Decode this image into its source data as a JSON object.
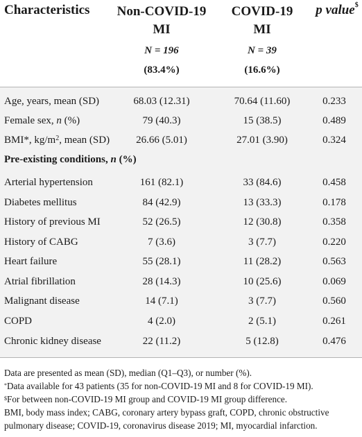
{
  "table": {
    "headers": {
      "characteristics": "Characteristics",
      "col1_line1": "Non-COVID-19",
      "col1_line2": "MI",
      "col1_n": "N = 196",
      "col1_pct": "(83.4%)",
      "col2_line1": "COVID-19",
      "col2_line2": "MI",
      "col2_n": "N = 39",
      "col2_pct": "(16.6%)",
      "pvalue": "p value",
      "pvalue_sup": "$"
    },
    "rows": [
      {
        "label": "Age, years, mean (SD)",
        "col1": "68.03 (12.31)",
        "col2": "70.64 (11.60)",
        "p": "0.233"
      },
      {
        "label": "Female sex, n (%)",
        "col1": "79 (40.3)",
        "col2": "15 (38.5)",
        "p": "0.489"
      },
      {
        "label_pre": "BMI*, kg/m",
        "label_sup": "2",
        "label_post": ", mean (SD)",
        "col1": "26.66 (5.01)",
        "col2": "27.01 (3.90)",
        "p": "0.324"
      },
      {
        "section": "Pre-existing conditions, n (%)"
      },
      {
        "label": "Arterial hypertension",
        "col1": "161 (82.1)",
        "col2": "33 (84.6)",
        "p": "0.458"
      },
      {
        "label": "Diabetes mellitus",
        "col1": "84 (42.9)",
        "col2": "13 (33.3)",
        "p": "0.178"
      },
      {
        "label": "History of previous MI",
        "col1": "52 (26.5)",
        "col2": "12 (30.8)",
        "p": "0.358"
      },
      {
        "label": "History of CABG",
        "col1": "7 (3.6)",
        "col2": "3 (7.7)",
        "p": "0.220"
      },
      {
        "label": "Heart failure",
        "col1": "55 (28.1)",
        "col2": "11 (28.2)",
        "p": "0.563"
      },
      {
        "label": "Atrial fibrillation",
        "col1": "28 (14.3)",
        "col2": "10 (25.6)",
        "p": "0.069"
      },
      {
        "label": "Malignant disease",
        "col1": "14 (7.1)",
        "col2": "3 (7.7)",
        "p": "0.560"
      },
      {
        "label": "COPD",
        "col1": "4 (2.0)",
        "col2": "2 (5.1)",
        "p": "0.261"
      },
      {
        "label": "Chronic kidney disease",
        "col1": "22 (11.2)",
        "col2": "5 (12.8)",
        "p": "0.476"
      }
    ]
  },
  "footnotes": {
    "line1": "Data are presented as mean (SD), median (Q1–Q3), or number (%).",
    "line2_sup": "*",
    "line2": "Data available for 43 patients (35 for non-COVID-19 MI and 8 for COVID-19 MI).",
    "line3_sup": "$",
    "line3": "For between non-COVID-19 MI group and COVID-19 MI group difference.",
    "line4": "BMI, body mass index; CABG, coronary artery bypass graft, COPD, chronic obstructive pulmonary disease; COVID-19, coronavirus disease 2019; MI, myocardial infarction."
  }
}
